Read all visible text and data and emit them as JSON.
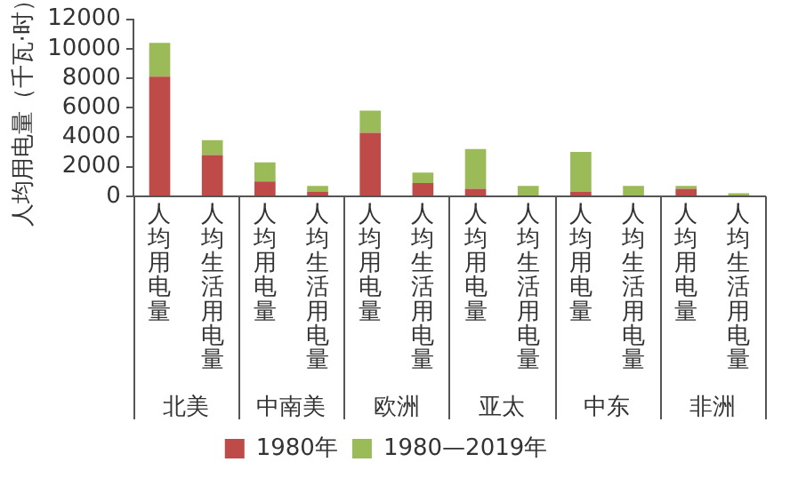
{
  "chart_data": {
    "type": "bar",
    "stacked": true,
    "ylabel": "人均用电量（千瓦·时）",
    "categories": [
      "人均用电量",
      "人均生活用电量",
      "人均用电量",
      "人均生活用电量",
      "人均用电量",
      "人均生活用电量",
      "人均用电量",
      "人均生活用电量",
      "人均用电量",
      "人均生活用电量",
      "人均用电量",
      "人均生活用电量"
    ],
    "annotations": [
      "北美",
      "中南美",
      "欧洲",
      "亚太",
      "中东",
      "非洲"
    ],
    "series": [
      {
        "name": "1980年",
        "color": "#be4b48",
        "values": [
          8100,
          2800,
          1000,
          300,
          4300,
          900,
          500,
          null,
          300,
          null,
          500,
          null
        ]
      },
      {
        "name": "1980—2019年",
        "color": "#9bbb59",
        "values": [
          2300,
          1000,
          1300,
          400,
          1500,
          700,
          2700,
          700,
          2700,
          700,
          200,
          200
        ]
      }
    ],
    "ylim": [
      0,
      12000
    ],
    "yticks": [
      0,
      2000,
      4000,
      6000,
      8000,
      10000,
      12000
    ],
    "grid": false,
    "legend": "bottom"
  }
}
